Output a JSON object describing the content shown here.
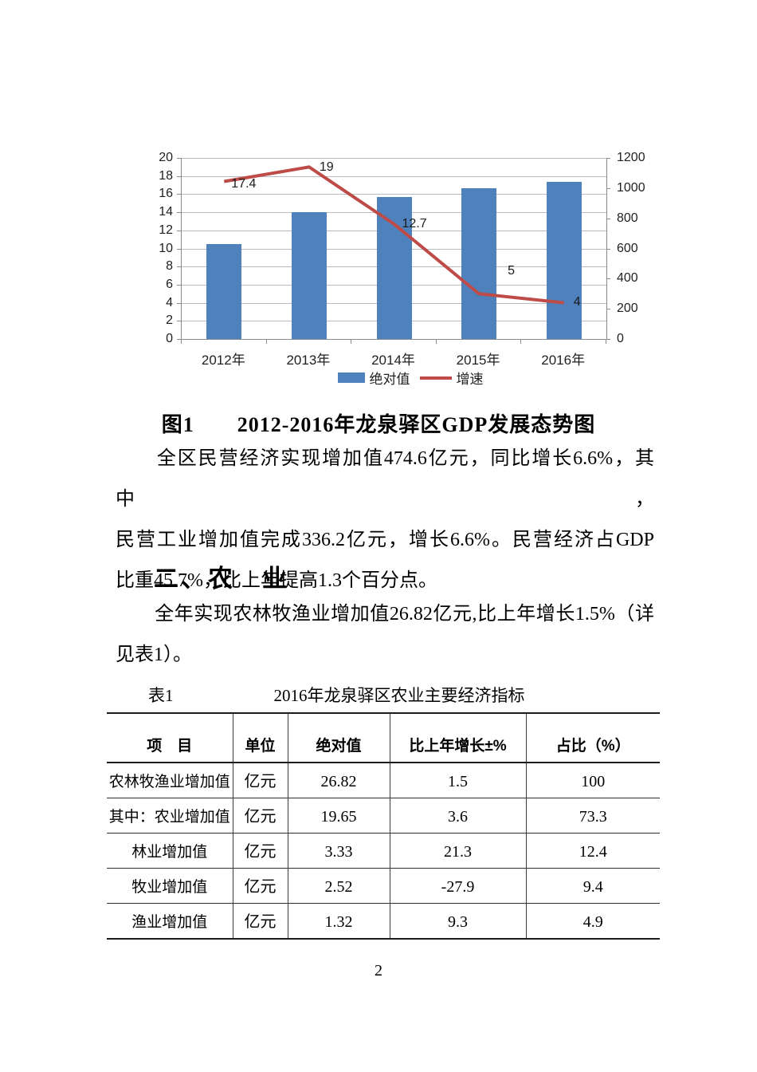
{
  "page": {
    "number": "2",
    "background": "#ffffff"
  },
  "figure": {
    "caption": "图1　　2012-2016年龙泉驿区GDP发展态势图"
  },
  "sections": {
    "agriculture_heading": "二、农　业"
  },
  "paragraphs": {
    "private_economy_lines": [
      "　　全区民营经济实现增加值474.6亿元，同比增长6.6%，其中，",
      "民营工业增加值完成336.2亿元，增长6.6%。民营经济占GDP",
      "比重45.7%，比上年提高1.3个百分点。"
    ],
    "agriculture_lines": [
      "　　全年实现农林牧渔业增加值26.82亿元,比上年增长1.5%（详",
      "见表1）。"
    ]
  },
  "chart_data": {
    "type": "combo",
    "title": "",
    "categories": [
      "2012年",
      "2013年",
      "2014年",
      "2015年",
      "2016年"
    ],
    "series": [
      {
        "name": "绝对值",
        "type": "bar",
        "axis": "right",
        "color": "#4f81bd",
        "values": [
          630,
          840,
          940,
          1000,
          1040
        ]
      },
      {
        "name": "增速",
        "type": "line",
        "axis": "left",
        "color": "#be4b48",
        "values": [
          17.4,
          19,
          12.7,
          5,
          4
        ],
        "data_labels": [
          "17.4",
          "19",
          "12.7",
          "5",
          "4"
        ]
      }
    ],
    "left_axis": {
      "min": 0,
      "max": 20,
      "step": 2,
      "ticks": [
        "0",
        "2",
        "4",
        "6",
        "8",
        "10",
        "12",
        "14",
        "16",
        "18",
        "20"
      ]
    },
    "right_axis": {
      "min": 0,
      "max": 1200,
      "step": 200,
      "ticks": [
        "0",
        "200",
        "400",
        "600",
        "800",
        "1000",
        "1200"
      ]
    },
    "grid": true,
    "legend_position": "bottom",
    "gridline_color": "#b9bcbf",
    "axis_color": "#8a8a8a"
  },
  "table": {
    "caption_label": "表1",
    "caption_title": "2016年龙泉驿区农业主要经济指标",
    "headers": [
      "项　目",
      "单位",
      "绝对值",
      "比上年增长±%",
      "占比（%）"
    ],
    "rows": [
      [
        "农林牧渔业增加值",
        "亿元",
        "26.82",
        "1.5",
        "100"
      ],
      [
        "其中：农业增加值",
        "亿元",
        "19.65",
        "3.6",
        "73.3"
      ],
      [
        "林业增加值",
        "亿元",
        "3.33",
        "21.3",
        "12.4"
      ],
      [
        "牧业增加值",
        "亿元",
        "2.52",
        "-27.9",
        "9.4"
      ],
      [
        "渔业增加值",
        "亿元",
        "1.32",
        "9.3",
        "4.9"
      ]
    ]
  }
}
